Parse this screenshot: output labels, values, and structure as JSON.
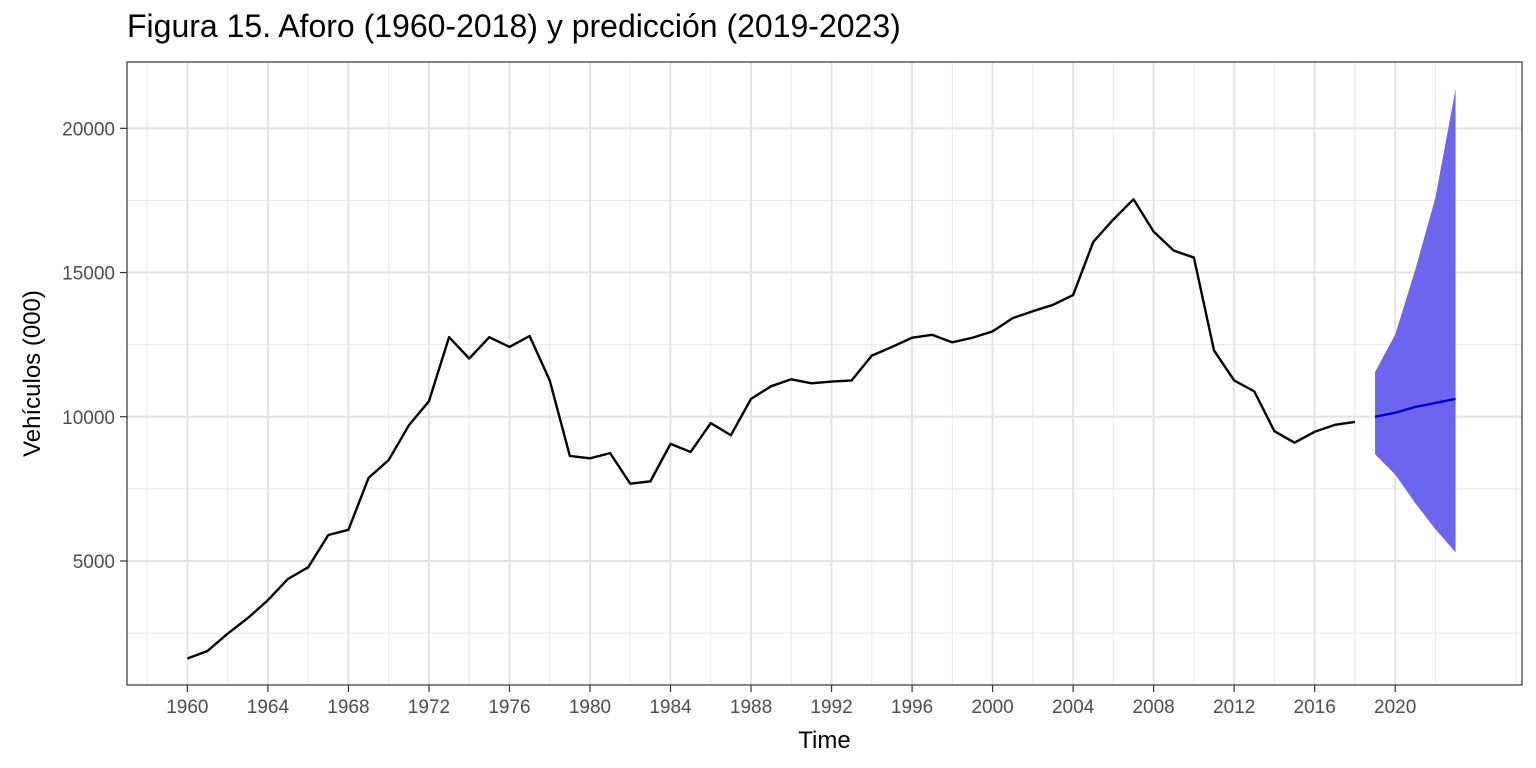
{
  "chart_data": {
    "type": "line",
    "title": "Figura 15. Aforo (1960-2018) y predicción (2019-2023)",
    "xlabel": "Time",
    "ylabel": "Vehículos (000)",
    "xlim": [
      1957,
      2026.3
    ],
    "ylim": [
      700,
      22300
    ],
    "x_ticks": [
      1960,
      1964,
      1968,
      1972,
      1976,
      1980,
      1984,
      1988,
      1992,
      1996,
      2000,
      2004,
      2008,
      2012,
      2016,
      2020
    ],
    "y_ticks": [
      5000,
      10000,
      15000,
      20000
    ],
    "grid": true,
    "legend": "none",
    "series": [
      {
        "kind": "observed",
        "color": "#000000",
        "x": [
          1960,
          1961,
          1962,
          1963,
          1964,
          1965,
          1966,
          1967,
          1968,
          1969,
          1970,
          1971,
          1972,
          1973,
          1974,
          1975,
          1976,
          1977,
          1978,
          1979,
          1980,
          1981,
          1982,
          1983,
          1984,
          1985,
          1986,
          1987,
          1988,
          1989,
          1990,
          1991,
          1992,
          1993,
          1994,
          1995,
          1996,
          1997,
          1998,
          1999,
          2000,
          2001,
          2002,
          2003,
          2004,
          2005,
          2006,
          2007,
          2008,
          2009,
          2010,
          2011,
          2012,
          2013,
          2014,
          2015,
          2016,
          2017,
          2018
        ],
        "values": [
          1620,
          1880,
          2480,
          3020,
          3640,
          4380,
          4780,
          5900,
          6080,
          7880,
          8500,
          9700,
          10540,
          12760,
          12020,
          12760,
          12420,
          12800,
          11260,
          8640,
          8560,
          8740,
          7680,
          7760,
          9060,
          8780,
          9780,
          9360,
          10620,
          11060,
          11300,
          11160,
          11220,
          11260,
          12120,
          12420,
          12740,
          12840,
          12580,
          12740,
          12960,
          13420,
          13660,
          13880,
          14220,
          16060,
          16840,
          17540,
          16420,
          15760,
          15520,
          12300,
          11260,
          10880,
          9500,
          9100,
          9480,
          9720,
          9820
        ]
      },
      {
        "kind": "forecast",
        "color": "#0000cc",
        "x": [
          2019,
          2020,
          2021,
          2022,
          2023
        ],
        "values": [
          10000,
          10140,
          10340,
          10480,
          10620
        ],
        "lower": [
          8700,
          8000,
          7000,
          6100,
          5300
        ],
        "upper": [
          11550,
          12850,
          15100,
          17600,
          21360
        ],
        "band_color": "#6c66ee"
      }
    ]
  }
}
